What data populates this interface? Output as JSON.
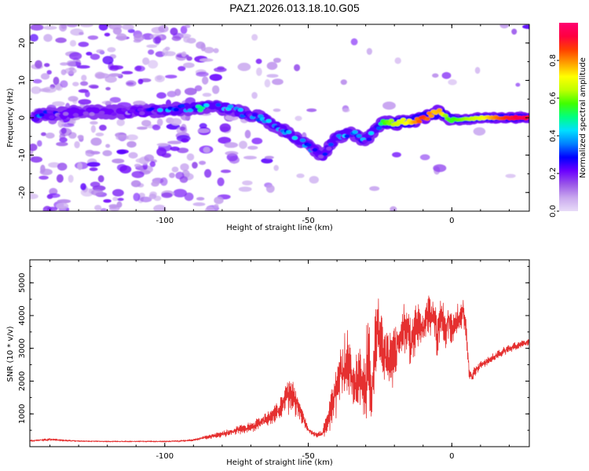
{
  "title": "PAZ1.2026.013.18.10.G05",
  "colors": {
    "line": "#e53030",
    "axis": "#000000",
    "colormap": [
      "#e8dcf8",
      "#c9a8ee",
      "#9a56e8",
      "#6c00ff",
      "#0000ff",
      "#0080ff",
      "#00e0ff",
      "#00ff80",
      "#40ff00",
      "#c0ff00",
      "#ffff00",
      "#ffa000",
      "#ff4000",
      "#ff0040",
      "#ff0070"
    ]
  },
  "chart_data": [
    {
      "type": "heatmap",
      "xlabel": "Height of straight line (km)",
      "ylabel": "Frequency (Hz)",
      "xlim": [
        -147,
        27
      ],
      "ylim": [
        -25,
        25
      ],
      "xticks": [
        -100,
        -50,
        0
      ],
      "xtick_labels": [
        "-100",
        "-50",
        "0"
      ],
      "yticks": [
        -20,
        -10,
        0,
        10,
        20
      ],
      "ytick_labels": [
        "-20",
        "-10",
        "0",
        "10",
        "20"
      ],
      "colorbar": {
        "label": "Normalized spectral amplitude",
        "range": [
          0,
          1
        ],
        "ticks": [
          0.0,
          0.2,
          0.4,
          0.6,
          0.8
        ],
        "tick_labels": [
          "0.0",
          "0.2",
          "0.4",
          "0.6",
          "0.8"
        ]
      },
      "ridge": {
        "x": [
          -145,
          -138,
          -130,
          -120,
          -110,
          -100,
          -92,
          -85,
          -78,
          -72,
          -66,
          -60,
          -55,
          -50,
          -45,
          -40,
          -35,
          -30,
          -26,
          -24,
          -20,
          -15,
          -10,
          -6,
          -4,
          -2,
          0,
          5,
          10,
          15,
          20,
          25,
          27
        ],
        "frequency": [
          0.5,
          1,
          1.5,
          1.5,
          1.5,
          2,
          2.5,
          3,
          2.5,
          1,
          0,
          -3,
          -5,
          -7.5,
          -10,
          -5,
          -4,
          -6,
          -3,
          -1.5,
          -1.5,
          -1,
          0,
          1,
          2,
          0.5,
          -0.5,
          -0.5,
          0,
          0,
          0,
          0,
          0
        ],
        "amplitude": [
          0.3,
          0.2,
          0.15,
          0.15,
          0.15,
          0.3,
          0.32,
          0.35,
          0.3,
          0.28,
          0.3,
          0.32,
          0.3,
          0.3,
          0.2,
          0.35,
          0.32,
          0.3,
          0.4,
          0.55,
          0.65,
          0.72,
          0.88,
          0.75,
          0.78,
          0.6,
          0.55,
          0.62,
          0.68,
          0.8,
          0.9,
          0.95,
          0.9
        ]
      }
    },
    {
      "type": "line",
      "xlabel": "Height of straight line (km)",
      "ylabel": "SNR (10 * v/v)",
      "xlim": [
        -147,
        27
      ],
      "ylim": [
        0,
        5700
      ],
      "xticks": [
        -100,
        -50,
        0
      ],
      "xtick_labels": [
        "-100",
        "-50",
        "0"
      ],
      "yticks": [
        1000,
        2000,
        3000,
        4000,
        5000
      ],
      "ytick_labels": [
        "1000",
        "2000",
        "3000",
        "4000",
        "5000"
      ],
      "series": [
        {
          "name": "SNR",
          "x": [
            -147,
            -140,
            -135,
            -130,
            -120,
            -110,
            -100,
            -95,
            -90,
            -85,
            -80,
            -75,
            -70,
            -65,
            -60,
            -57,
            -55,
            -52,
            -50,
            -47,
            -45,
            -43,
            -40,
            -38,
            -36,
            -34,
            -32,
            -30,
            -29,
            -28,
            -27,
            -26,
            -25,
            -24,
            -22,
            -20,
            -18,
            -16,
            -14,
            -12,
            -10,
            -8,
            -6,
            -5,
            -4,
            -3,
            -2,
            -1,
            0,
            1,
            2,
            3,
            4,
            5,
            6,
            7,
            8,
            10,
            12,
            15,
            18,
            20,
            22,
            25,
            27
          ],
          "center": [
            180,
            220,
            190,
            170,
            160,
            160,
            160,
            170,
            200,
            300,
            380,
            500,
            600,
            800,
            1100,
            1600,
            1500,
            900,
            500,
            350,
            400,
            800,
            1800,
            2300,
            2600,
            1800,
            2000,
            1800,
            3100,
            1400,
            2800,
            3800,
            3000,
            3100,
            2600,
            2800,
            3300,
            3600,
            3200,
            3800,
            3600,
            4100,
            3900,
            3200,
            4000,
            3700,
            3600,
            4000,
            3600,
            3700,
            3900,
            4000,
            4200,
            3500,
            2300,
            2100,
            2300,
            2500,
            2600,
            2750,
            2900,
            3000,
            3050,
            3150,
            3200
          ],
          "spread": [
            40,
            60,
            40,
            30,
            30,
            30,
            30,
            40,
            50,
            100,
            150,
            200,
            250,
            350,
            500,
            900,
            800,
            400,
            150,
            100,
            200,
            700,
            1200,
            1500,
            1600,
            1500,
            1600,
            1800,
            2600,
            1600,
            2000,
            2000,
            1600,
            1500,
            1500,
            1300,
            1200,
            1200,
            1200,
            1100,
            1100,
            1000,
            1000,
            1000,
            1000,
            1000,
            1000,
            900,
            800,
            700,
            800,
            700,
            700,
            700,
            300,
            250,
            250,
            250,
            200,
            200,
            200,
            200,
            200,
            150,
            150
          ]
        }
      ]
    }
  ]
}
